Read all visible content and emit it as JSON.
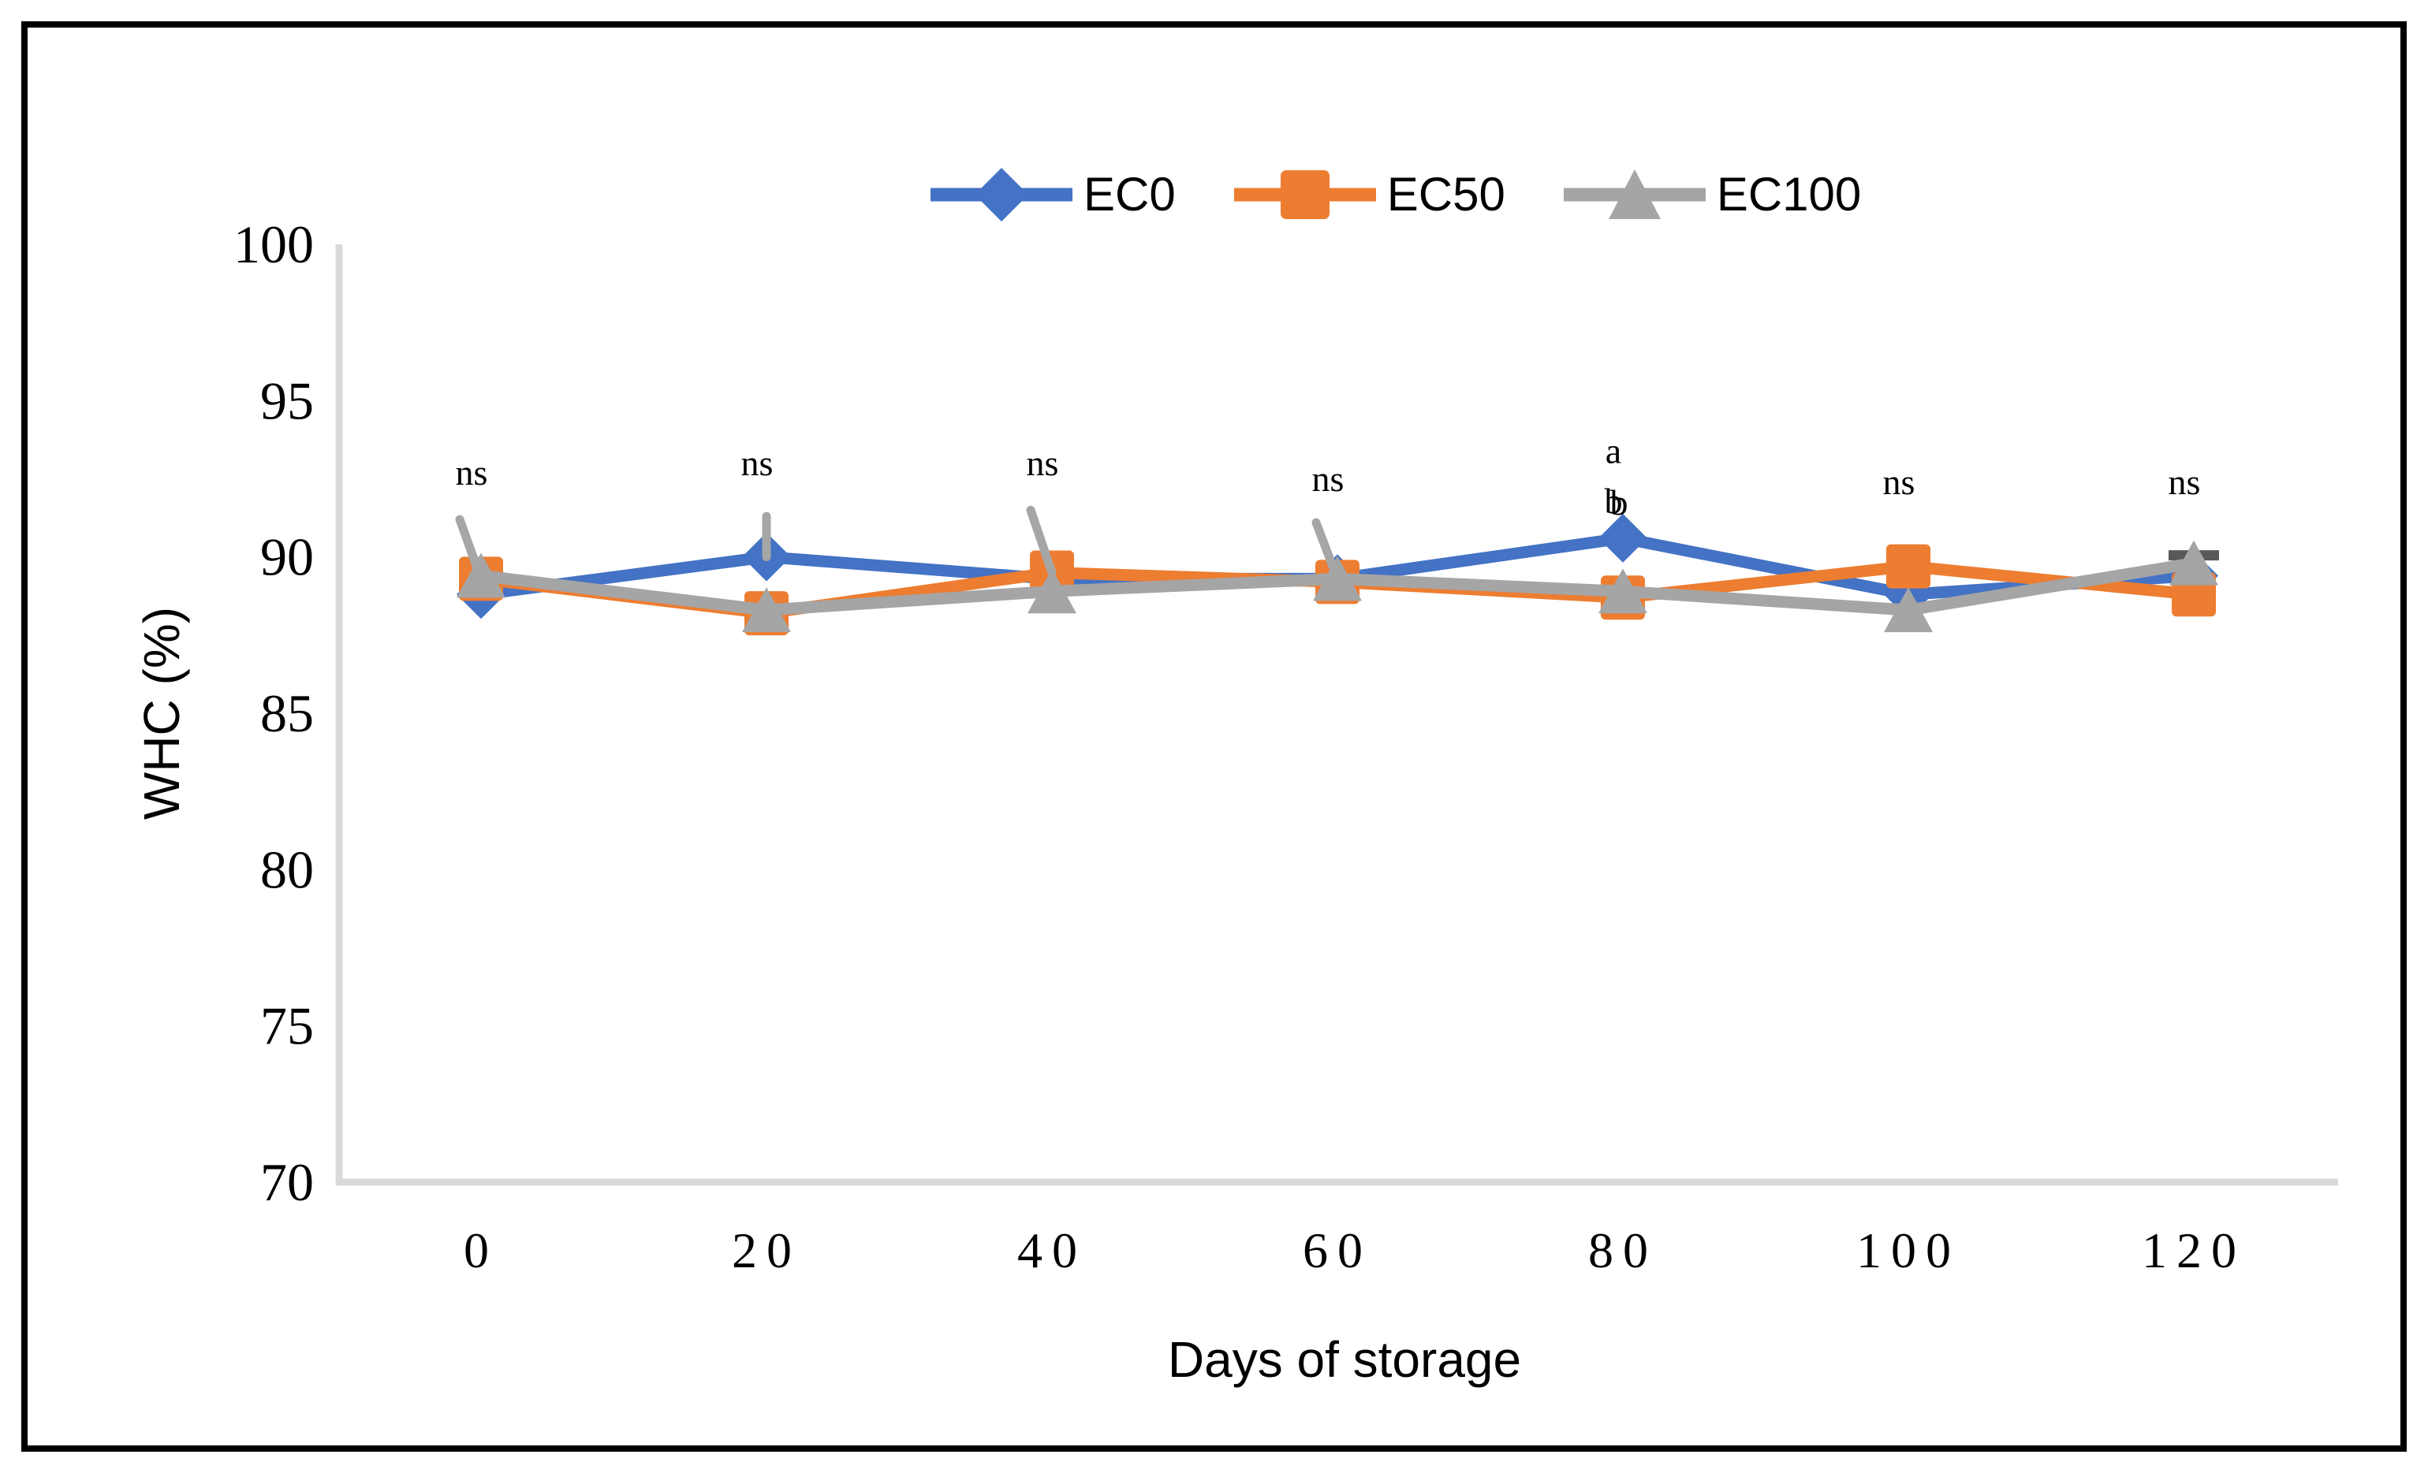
{
  "figure": {
    "background": "#ffffff",
    "border_color": "#000000",
    "axis_line_color": "#d9d9d9",
    "error_bar_color": "#a6a6a6",
    "text_color": "#000000"
  },
  "chart_data": {
    "type": "line",
    "title": "",
    "xlabel": "Days of storage",
    "ylabel": "WHC (%)",
    "categories": [
      0,
      20,
      40,
      60,
      80,
      100,
      120
    ],
    "ylim": [
      70,
      100
    ],
    "yticks": [
      100,
      95,
      90,
      85,
      80,
      75,
      70
    ],
    "grid": false,
    "legend_position": "top-center",
    "series": [
      {
        "name": "EC0",
        "marker": "diamond",
        "color": "#4472C4",
        "values": [
          88.8,
          90.0,
          89.3,
          89.3,
          90.6,
          88.8,
          89.4
        ]
      },
      {
        "name": "EC50",
        "marker": "square",
        "color": "#ED7D31",
        "values": [
          89.3,
          88.2,
          89.5,
          89.2,
          88.7,
          89.7,
          88.8
        ]
      },
      {
        "name": "EC100",
        "marker": "triangle",
        "color": "#A5A5A5",
        "values": [
          89.4,
          88.3,
          88.9,
          89.3,
          88.9,
          88.3,
          89.8
        ]
      }
    ],
    "error_bars": [
      {
        "x": 0,
        "y0": 89.3,
        "y1": 91.2,
        "slant": true,
        "cap": false
      },
      {
        "x": 20,
        "y0": 90.0,
        "y1": 91.3,
        "slant": false,
        "cap": false
      },
      {
        "x": 40,
        "y0": 89.5,
        "y1": 91.5,
        "slant": true,
        "cap": false
      },
      {
        "x": 60,
        "y0": 89.3,
        "y1": 91.1,
        "slant": true,
        "cap": false
      },
      {
        "x": 120,
        "y0": 89.95,
        "y1": 90.05,
        "slant": false,
        "cap": true,
        "color": "#595959"
      }
    ],
    "annotations": [
      {
        "x": 0,
        "y": 92.7,
        "text": "ns",
        "dx": 0
      },
      {
        "x": 20,
        "y": 93.0,
        "text": "ns",
        "dx": 0
      },
      {
        "x": 40,
        "y": 93.0,
        "text": "ns",
        "dx": 0
      },
      {
        "x": 60,
        "y": 92.5,
        "text": "ns",
        "dx": 0
      },
      {
        "x": 80,
        "y": 93.4,
        "text": "a",
        "dx": 0
      },
      {
        "x": 80,
        "y": 91.8,
        "text": "b",
        "dx": 0
      },
      {
        "x": 80,
        "y": 91.75,
        "text": "b",
        "dx": 7
      },
      {
        "x": 100,
        "y": 92.4,
        "text": "ns",
        "dx": 0
      },
      {
        "x": 120,
        "y": 92.4,
        "text": "ns",
        "dx": 0
      }
    ]
  }
}
